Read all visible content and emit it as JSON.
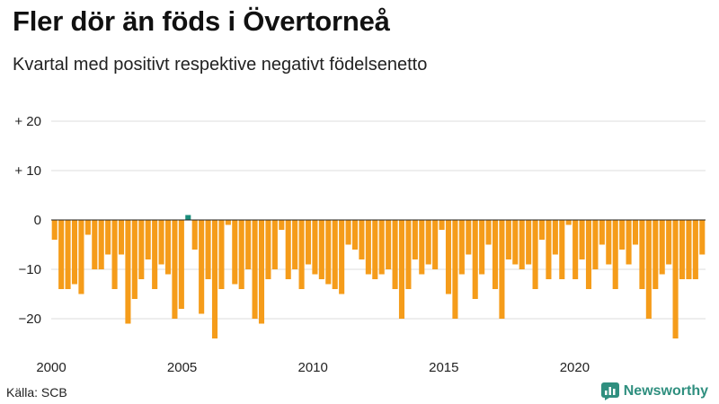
{
  "title": "Fler dör än föds i Övertorneå",
  "subtitle": "Kvartal med positivt respektive negativt födelsenetto",
  "source": "Källa: SCB",
  "brand": {
    "name": "Newsworthy",
    "icon": "bar-chart-logo-icon"
  },
  "colors": {
    "negative": "#f59c1a",
    "positive": "#1b8d7c",
    "grid": "#dddddd",
    "zero_line": "#222222",
    "brand": "#2f8f7f"
  },
  "chart_data": {
    "type": "bar",
    "title": "Fler dör än föds i Övertorneå",
    "subtitle": "Kvartal med positivt respektive negativt födelsenetto",
    "xlabel": "",
    "ylabel": "",
    "ylim": [
      -25,
      22
    ],
    "y_ticks": [
      {
        "value": 20,
        "label": "+ 20"
      },
      {
        "value": 10,
        "label": "+ 10"
      },
      {
        "value": 0,
        "label": "0"
      },
      {
        "value": -10,
        "label": "−10"
      },
      {
        "value": -20,
        "label": "−20"
      }
    ],
    "x_tick_labels": [
      "2000",
      "2005",
      "2010",
      "2015",
      "2020"
    ],
    "x_start_year": 2000,
    "x_end_year": 2024,
    "grid": true,
    "values": [
      -4,
      -14,
      -14,
      -13,
      -15,
      -3,
      -10,
      -10,
      -7,
      -14,
      -7,
      -21,
      -16,
      -12,
      -8,
      -14,
      -9,
      -11,
      -20,
      -18,
      1,
      -6,
      -19,
      -12,
      -24,
      -14,
      -1,
      -13,
      -14,
      -10,
      -20,
      -21,
      -12,
      -10,
      -2,
      -12,
      -10,
      -14,
      -9,
      -11,
      -12,
      -13,
      -14,
      -15,
      -5,
      -6,
      -8,
      -11,
      -12,
      -11,
      -10,
      -14,
      -20,
      -14,
      -8,
      -11,
      -9,
      -10,
      -2,
      -15,
      -20,
      -11,
      -7,
      -16,
      -11,
      -5,
      -14,
      -20,
      -8,
      -9,
      -10,
      -9,
      -14,
      -4,
      -12,
      -7,
      -12,
      -1,
      -12,
      -8,
      -14,
      -10,
      -5,
      -9,
      -14,
      -6,
      -9,
      -5,
      -14,
      -20,
      -14,
      -11,
      -9,
      -24,
      -12,
      -12,
      -12,
      -7
    ]
  }
}
